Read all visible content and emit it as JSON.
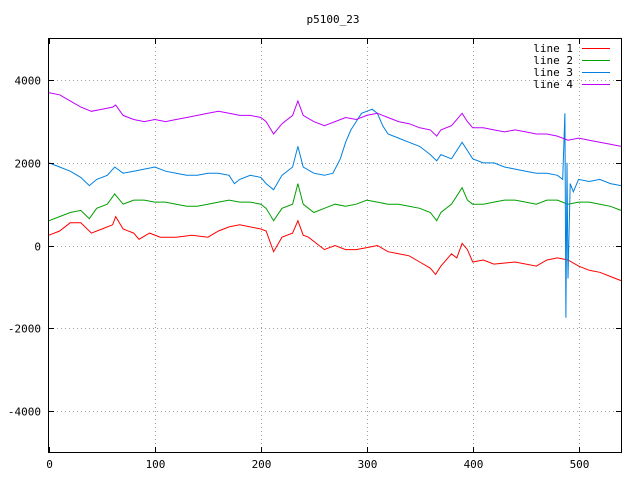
{
  "chart_data": {
    "type": "line",
    "title": "p5100_23",
    "xlabel": "",
    "ylabel": "",
    "xlim": [
      0,
      540
    ],
    "ylim": [
      -5000,
      5000
    ],
    "xticks": [
      0,
      100,
      200,
      300,
      400,
      500
    ],
    "yticks": [
      -4000,
      -2000,
      0,
      2000,
      4000
    ],
    "grid": true,
    "legend_position": "top-right",
    "series": [
      {
        "name": "line 1",
        "color": "#ff0000",
        "points": [
          [
            0,
            250
          ],
          [
            10,
            350
          ],
          [
            20,
            550
          ],
          [
            30,
            550
          ],
          [
            40,
            300
          ],
          [
            50,
            400
          ],
          [
            60,
            500
          ],
          [
            63,
            700
          ],
          [
            70,
            400
          ],
          [
            80,
            300
          ],
          [
            85,
            150
          ],
          [
            95,
            300
          ],
          [
            105,
            200
          ],
          [
            120,
            200
          ],
          [
            135,
            250
          ],
          [
            150,
            200
          ],
          [
            160,
            350
          ],
          [
            170,
            450
          ],
          [
            180,
            500
          ],
          [
            200,
            400
          ],
          [
            205,
            350
          ],
          [
            212,
            -150
          ],
          [
            220,
            200
          ],
          [
            230,
            300
          ],
          [
            235,
            600
          ],
          [
            240,
            250
          ],
          [
            245,
            200
          ],
          [
            255,
            0
          ],
          [
            260,
            -100
          ],
          [
            270,
            0
          ],
          [
            280,
            -100
          ],
          [
            290,
            -100
          ],
          [
            300,
            -50
          ],
          [
            310,
            0
          ],
          [
            320,
            -150
          ],
          [
            330,
            -200
          ],
          [
            340,
            -250
          ],
          [
            350,
            -400
          ],
          [
            360,
            -550
          ],
          [
            365,
            -700
          ],
          [
            370,
            -500
          ],
          [
            380,
            -200
          ],
          [
            385,
            -300
          ],
          [
            390,
            50
          ],
          [
            395,
            -100
          ],
          [
            400,
            -400
          ],
          [
            410,
            -350
          ],
          [
            420,
            -450
          ],
          [
            440,
            -400
          ],
          [
            460,
            -500
          ],
          [
            470,
            -350
          ],
          [
            480,
            -300
          ],
          [
            490,
            -350
          ],
          [
            500,
            -500
          ],
          [
            510,
            -600
          ],
          [
            520,
            -650
          ],
          [
            530,
            -750
          ],
          [
            540,
            -850
          ]
        ]
      },
      {
        "name": "line 2",
        "color": "#00a000",
        "points": [
          [
            0,
            600
          ],
          [
            10,
            700
          ],
          [
            20,
            800
          ],
          [
            30,
            850
          ],
          [
            38,
            650
          ],
          [
            45,
            900
          ],
          [
            55,
            1000
          ],
          [
            62,
            1250
          ],
          [
            70,
            1000
          ],
          [
            80,
            1100
          ],
          [
            90,
            1100
          ],
          [
            100,
            1050
          ],
          [
            110,
            1050
          ],
          [
            120,
            1000
          ],
          [
            130,
            950
          ],
          [
            140,
            950
          ],
          [
            150,
            1000
          ],
          [
            160,
            1050
          ],
          [
            170,
            1100
          ],
          [
            180,
            1050
          ],
          [
            190,
            1050
          ],
          [
            200,
            1000
          ],
          [
            205,
            900
          ],
          [
            212,
            600
          ],
          [
            220,
            900
          ],
          [
            230,
            1000
          ],
          [
            235,
            1500
          ],
          [
            240,
            1000
          ],
          [
            250,
            800
          ],
          [
            260,
            900
          ],
          [
            270,
            1000
          ],
          [
            280,
            950
          ],
          [
            290,
            1000
          ],
          [
            300,
            1100
          ],
          [
            310,
            1050
          ],
          [
            320,
            1000
          ],
          [
            330,
            1000
          ],
          [
            340,
            950
          ],
          [
            350,
            900
          ],
          [
            360,
            800
          ],
          [
            366,
            600
          ],
          [
            370,
            800
          ],
          [
            380,
            1000
          ],
          [
            390,
            1400
          ],
          [
            395,
            1100
          ],
          [
            400,
            1000
          ],
          [
            410,
            1000
          ],
          [
            420,
            1050
          ],
          [
            430,
            1100
          ],
          [
            440,
            1100
          ],
          [
            450,
            1050
          ],
          [
            460,
            1000
          ],
          [
            470,
            1100
          ],
          [
            480,
            1100
          ],
          [
            490,
            1000
          ],
          [
            500,
            1050
          ],
          [
            510,
            1050
          ],
          [
            520,
            1000
          ],
          [
            530,
            950
          ],
          [
            540,
            850
          ]
        ]
      },
      {
        "name": "line 3",
        "color": "#0080e0",
        "points": [
          [
            0,
            2000
          ],
          [
            10,
            1900
          ],
          [
            20,
            1800
          ],
          [
            30,
            1650
          ],
          [
            38,
            1450
          ],
          [
            45,
            1600
          ],
          [
            55,
            1700
          ],
          [
            62,
            1900
          ],
          [
            70,
            1750
          ],
          [
            80,
            1800
          ],
          [
            90,
            1850
          ],
          [
            100,
            1900
          ],
          [
            110,
            1800
          ],
          [
            120,
            1750
          ],
          [
            130,
            1700
          ],
          [
            140,
            1700
          ],
          [
            150,
            1750
          ],
          [
            160,
            1750
          ],
          [
            170,
            1700
          ],
          [
            175,
            1500
          ],
          [
            180,
            1600
          ],
          [
            190,
            1700
          ],
          [
            200,
            1650
          ],
          [
            205,
            1500
          ],
          [
            212,
            1350
          ],
          [
            220,
            1700
          ],
          [
            230,
            1900
          ],
          [
            235,
            2400
          ],
          [
            240,
            1900
          ],
          [
            250,
            1750
          ],
          [
            260,
            1700
          ],
          [
            268,
            1750
          ],
          [
            275,
            2100
          ],
          [
            280,
            2500
          ],
          [
            285,
            2800
          ],
          [
            290,
            3000
          ],
          [
            295,
            3200
          ],
          [
            300,
            3250
          ],
          [
            305,
            3300
          ],
          [
            310,
            3200
          ],
          [
            315,
            2900
          ],
          [
            320,
            2700
          ],
          [
            330,
            2600
          ],
          [
            340,
            2500
          ],
          [
            350,
            2400
          ],
          [
            360,
            2200
          ],
          [
            366,
            2050
          ],
          [
            370,
            2200
          ],
          [
            380,
            2100
          ],
          [
            390,
            2500
          ],
          [
            395,
            2300
          ],
          [
            400,
            2100
          ],
          [
            410,
            2000
          ],
          [
            420,
            2000
          ],
          [
            430,
            1900
          ],
          [
            440,
            1850
          ],
          [
            450,
            1800
          ],
          [
            460,
            1750
          ],
          [
            470,
            1750
          ],
          [
            480,
            1700
          ],
          [
            485,
            1600
          ],
          [
            487,
            3200
          ],
          [
            488,
            -1750
          ],
          [
            489,
            2000
          ],
          [
            490,
            -800
          ],
          [
            492,
            1500
          ],
          [
            495,
            1300
          ],
          [
            500,
            1600
          ],
          [
            510,
            1550
          ],
          [
            520,
            1600
          ],
          [
            530,
            1500
          ],
          [
            540,
            1450
          ]
        ]
      },
      {
        "name": "line 4",
        "color": "#c000ff",
        "points": [
          [
            0,
            3700
          ],
          [
            10,
            3650
          ],
          [
            20,
            3500
          ],
          [
            30,
            3350
          ],
          [
            40,
            3250
          ],
          [
            50,
            3300
          ],
          [
            60,
            3350
          ],
          [
            63,
            3400
          ],
          [
            70,
            3150
          ],
          [
            80,
            3050
          ],
          [
            90,
            3000
          ],
          [
            100,
            3050
          ],
          [
            110,
            3000
          ],
          [
            120,
            3050
          ],
          [
            130,
            3100
          ],
          [
            140,
            3150
          ],
          [
            150,
            3200
          ],
          [
            160,
            3250
          ],
          [
            170,
            3200
          ],
          [
            180,
            3150
          ],
          [
            190,
            3150
          ],
          [
            200,
            3100
          ],
          [
            205,
            3000
          ],
          [
            212,
            2700
          ],
          [
            220,
            2950
          ],
          [
            230,
            3150
          ],
          [
            235,
            3500
          ],
          [
            240,
            3150
          ],
          [
            250,
            3000
          ],
          [
            260,
            2900
          ],
          [
            270,
            3000
          ],
          [
            280,
            3100
          ],
          [
            290,
            3050
          ],
          [
            300,
            3150
          ],
          [
            310,
            3200
          ],
          [
            320,
            3100
          ],
          [
            330,
            3000
          ],
          [
            340,
            2950
          ],
          [
            350,
            2850
          ],
          [
            360,
            2800
          ],
          [
            366,
            2650
          ],
          [
            370,
            2800
          ],
          [
            380,
            2900
          ],
          [
            390,
            3200
          ],
          [
            395,
            3000
          ],
          [
            400,
            2850
          ],
          [
            410,
            2850
          ],
          [
            420,
            2800
          ],
          [
            430,
            2750
          ],
          [
            440,
            2800
          ],
          [
            450,
            2750
          ],
          [
            460,
            2700
          ],
          [
            470,
            2700
          ],
          [
            480,
            2650
          ],
          [
            490,
            2550
          ],
          [
            500,
            2600
          ],
          [
            510,
            2550
          ],
          [
            520,
            2500
          ],
          [
            530,
            2450
          ],
          [
            540,
            2400
          ]
        ]
      }
    ]
  }
}
